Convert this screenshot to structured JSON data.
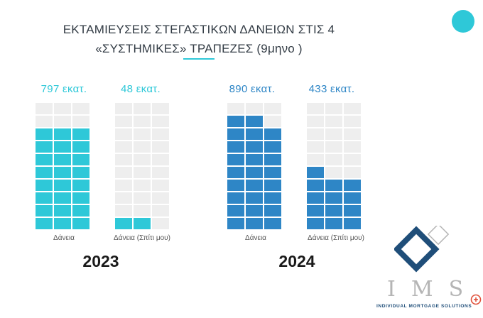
{
  "title": {
    "line1": "ΕΚΤΑΜΙΕΥΣΕΙΣ ΣΤΕΓΑΣΤΙΚΩΝ ΔΑΝΕΙΩΝ ΣΤΙΣ 4",
    "line2": "«ΣΥΣΤΗΜΙΚΕΣ» ΤΡΑΠΕΖΕΣ (9μηνο )"
  },
  "chart_data": {
    "type": "bar",
    "unit_label": "εκατ.",
    "grid": {
      "columns": 3,
      "rows": 10,
      "empty_color": "#eeeeee"
    },
    "groups": [
      {
        "year": "2023",
        "bars": [
          {
            "category": "Δάνεια",
            "value": 797,
            "value_label": "797 εκατ.",
            "filled_cells": 24,
            "color": "#2ec8d8"
          },
          {
            "category": "Δάνεια (Σπίτι μου)",
            "value": 48,
            "value_label": "48 εκατ.",
            "filled_cells": 2,
            "color": "#2ec8d8"
          }
        ]
      },
      {
        "year": "2024",
        "bars": [
          {
            "category": "Δάνεια",
            "value": 890,
            "value_label": "890 εκατ.",
            "filled_cells": 26,
            "color": "#2e86c6"
          },
          {
            "category": "Δάνεια (Σπίτι μου)",
            "value": 433,
            "value_label": "433 εκατ.",
            "filled_cells": 13,
            "color": "#2e86c6"
          }
        ]
      }
    ]
  },
  "logo": {
    "letters": "IMS",
    "tagline": "INDIVIDUAL MORTGAGE SOLUTIONS",
    "mark_color": "#1f4e79"
  },
  "accent_color": "#2ec8d8",
  "dot_color": "#2ec8d8",
  "zoom_icon": "zoom-plus-icon"
}
